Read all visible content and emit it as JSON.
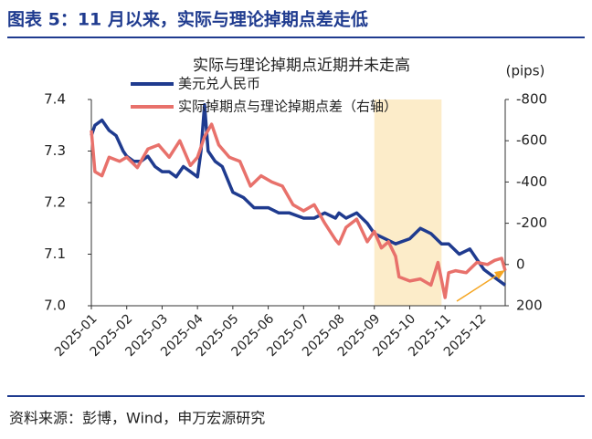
{
  "header": {
    "title": "图表 5：11 月以来，实际与理论掉期点差走低"
  },
  "chart_data": {
    "type": "line",
    "title": "实际与理论掉期点近期并未走高",
    "y2_label": "(pips)",
    "xlim": [
      0,
      11.7
    ],
    "xticks": [
      {
        "value": 0,
        "label": "2025-01"
      },
      {
        "value": 1,
        "label": "2025-02"
      },
      {
        "value": 2,
        "label": "2025-03"
      },
      {
        "value": 3,
        "label": "2025-04"
      },
      {
        "value": 4,
        "label": "2025-05"
      },
      {
        "value": 5,
        "label": "2025-06"
      },
      {
        "value": 6,
        "label": "2025-07"
      },
      {
        "value": 7,
        "label": "2025-08"
      },
      {
        "value": 8,
        "label": "2025-09"
      },
      {
        "value": 9,
        "label": "2025-10"
      },
      {
        "value": 10,
        "label": "2025-11"
      },
      {
        "value": 11,
        "label": "2025-12"
      }
    ],
    "ylim": [
      7.0,
      7.4
    ],
    "yticks": [
      {
        "value": 7,
        "label": "7.0"
      },
      7.1,
      7.2,
      7.3,
      7.4
    ],
    "y2lim": [
      200,
      -800
    ],
    "y2ticks": [
      200,
      0,
      -200,
      -400,
      -600,
      -800
    ],
    "shade_x": [
      8,
      9.9
    ],
    "shade_color": "#fcecc9",
    "series": [
      {
        "name": "美元兑人民币",
        "color": "#1f3b8f",
        "x": [
          0,
          0.1,
          0.3,
          0.5,
          0.7,
          0.9,
          1.0,
          1.2,
          1.4,
          1.6,
          1.8,
          2.0,
          2.2,
          2.4,
          2.6,
          2.8,
          3.0,
          3.1,
          3.2,
          3.3,
          3.5,
          3.7,
          4.0,
          4.3,
          4.6,
          5.0,
          5.3,
          5.6,
          6.0,
          6.3,
          6.6,
          6.9,
          7.0,
          7.2,
          7.5,
          7.8,
          8.0,
          8.3,
          8.6,
          9.0,
          9.3,
          9.6,
          9.9,
          10.1,
          10.4,
          10.7,
          10.9,
          11.1,
          11.3,
          11.5,
          11.7
        ],
        "values": [
          7.33,
          7.35,
          7.36,
          7.34,
          7.33,
          7.3,
          7.29,
          7.28,
          7.28,
          7.29,
          7.27,
          7.26,
          7.26,
          7.25,
          7.27,
          7.26,
          7.25,
          7.3,
          7.39,
          7.3,
          7.28,
          7.27,
          7.22,
          7.21,
          7.19,
          7.19,
          7.18,
          7.18,
          7.17,
          7.17,
          7.18,
          7.17,
          7.18,
          7.17,
          7.18,
          7.16,
          7.14,
          7.13,
          7.12,
          7.13,
          7.15,
          7.14,
          7.12,
          7.12,
          7.1,
          7.11,
          7.09,
          7.07,
          7.06,
          7.05,
          7.04
        ]
      },
      {
        "name": "实际掉期点与理论掉期点差（右轴）",
        "color": "#e8716b",
        "axis": "y2",
        "x": [
          0,
          0.1,
          0.3,
          0.5,
          0.8,
          1.0,
          1.3,
          1.6,
          1.9,
          2.2,
          2.5,
          2.8,
          3.0,
          3.2,
          3.4,
          3.6,
          3.9,
          4.2,
          4.5,
          4.8,
          5.1,
          5.4,
          5.7,
          6.0,
          6.3,
          6.6,
          6.9,
          7.0,
          7.2,
          7.5,
          7.8,
          8.0,
          8.2,
          8.4,
          8.6,
          8.7,
          9.0,
          9.3,
          9.6,
          9.8,
          10.0,
          10.1,
          10.3,
          10.6,
          10.9,
          11.2,
          11.4,
          11.6,
          11.7
        ],
        "values": [
          -650,
          -450,
          -430,
          -520,
          -500,
          -520,
          -470,
          -560,
          -580,
          -520,
          -600,
          -480,
          -520,
          -620,
          -680,
          -580,
          -520,
          -500,
          -380,
          -430,
          -400,
          -380,
          -290,
          -260,
          -290,
          -200,
          -120,
          -100,
          -180,
          -220,
          -110,
          -160,
          -80,
          -110,
          -40,
          60,
          80,
          70,
          100,
          -10,
          160,
          40,
          30,
          40,
          -10,
          0,
          -20,
          -30,
          30
        ]
      }
    ]
  },
  "footer": {
    "source": "资料来源：彭博，Wind，申万宏源研究"
  }
}
